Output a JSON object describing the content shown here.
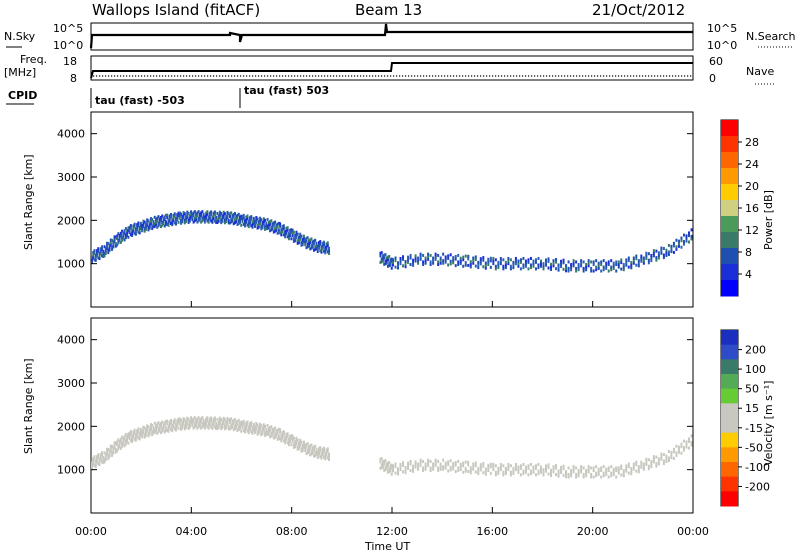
{
  "header": {
    "station": "Wallops Island (fitACF)",
    "beam": "Beam 13",
    "date": "21/Oct/2012"
  },
  "top_panels": {
    "nsky_label": "N.Sky",
    "nsky_ticks": [
      "10^5",
      "10^0"
    ],
    "nsearch_label": "N.Search",
    "nsearch_ticks": [
      "10^5",
      "10^0"
    ],
    "freq_label": "Freq.",
    "freq_unit": "[MHz]",
    "freq_ticks": [
      "18",
      "8"
    ],
    "nave_label": "Nave",
    "nave_ticks": [
      "60",
      "0"
    ],
    "cpid_label": "CPID",
    "cpid_segments": [
      "tau (fast) -503",
      "tau (fast) 503"
    ]
  },
  "colorbars": {
    "power": {
      "label": "Power [dB]",
      "ticks": [
        "28",
        "24",
        "20",
        "16",
        "12",
        "8",
        "4"
      ],
      "colors": [
        "#ff0000",
        "#ff3300",
        "#ff6600",
        "#ff9900",
        "#ffcc00",
        "#d0d080",
        "#4a9a5a",
        "#3a7a6a",
        "#1f4fb0",
        "#1a2fd8",
        "#0000ff"
      ]
    },
    "velocity": {
      "label": "Velocity [m s⁻¹]",
      "ticks": [
        "200",
        "100",
        "50",
        "15",
        "-15",
        "-50",
        "-100",
        "-200"
      ],
      "colors": [
        "#1a2fbf",
        "#2e4cc8",
        "#3a7a6a",
        "#55aa55",
        "#66cc33",
        "#c8c8c0",
        "#c8c8c0",
        "#ffcc00",
        "#ff9900",
        "#ff6600",
        "#ff3300",
        "#ff0000"
      ]
    }
  },
  "chart_data": [
    {
      "type": "scatter",
      "title": "",
      "xlabel": "Time UT",
      "ylabel": "Slant Range [km]",
      "xlim": [
        0,
        24
      ],
      "ylim": [
        0,
        4500
      ],
      "x_ticks": [
        "00:00",
        "04:00",
        "08:00",
        "12:00",
        "16:00",
        "20:00",
        "00:00"
      ],
      "y_ticks": [
        "1000",
        "2000",
        "3000",
        "4000"
      ],
      "series": [
        {
          "name": "Power",
          "x": [
            0,
            0.5,
            1,
            1.5,
            2,
            2.5,
            3,
            3.5,
            4,
            4.5,
            5,
            5.5,
            6,
            6.5,
            7,
            7.5,
            8,
            8.5,
            9,
            9.5,
            11.5,
            12,
            13,
            14,
            15,
            16,
            17,
            18,
            19,
            20,
            21,
            22,
            23,
            24
          ],
          "y": [
            1150,
            1300,
            1550,
            1750,
            1850,
            1950,
            2000,
            2050,
            2080,
            2080,
            2070,
            2060,
            2000,
            1950,
            1900,
            1800,
            1650,
            1500,
            1400,
            1350,
            1150,
            1000,
            1100,
            1100,
            1050,
            1000,
            1000,
            1000,
            950,
            950,
            950,
            1100,
            1300,
            1700
          ]
        }
      ]
    },
    {
      "type": "scatter",
      "title": "",
      "xlabel": "Time UT",
      "ylabel": "Slant Range [km]",
      "xlim": [
        0,
        24
      ],
      "ylim": [
        0,
        4500
      ],
      "x_ticks": [
        "00:00",
        "04:00",
        "08:00",
        "12:00",
        "16:00",
        "20:00",
        "00:00"
      ],
      "y_ticks": [
        "1000",
        "2000",
        "3000",
        "4000"
      ],
      "series": [
        {
          "name": "Velocity",
          "x": [
            0,
            0.5,
            1,
            1.5,
            2,
            2.5,
            3,
            3.5,
            4,
            4.5,
            5,
            5.5,
            6,
            6.5,
            7,
            7.5,
            8,
            8.5,
            9,
            9.5,
            11.5,
            12,
            13,
            14,
            15,
            16,
            17,
            18,
            19,
            20,
            21,
            22,
            23,
            24
          ],
          "y": [
            1150,
            1300,
            1550,
            1750,
            1850,
            1950,
            2000,
            2050,
            2080,
            2080,
            2070,
            2060,
            2000,
            1950,
            1900,
            1800,
            1650,
            1500,
            1400,
            1350,
            1150,
            1000,
            1100,
            1100,
            1050,
            1000,
            1000,
            1000,
            950,
            950,
            950,
            1100,
            1300,
            1700
          ]
        }
      ]
    }
  ]
}
